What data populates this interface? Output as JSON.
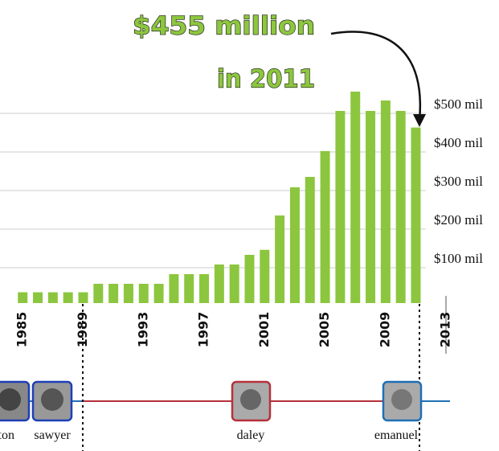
{
  "chart_data": {
    "type": "bar",
    "annotation": [
      "$455 million",
      "in 2011"
    ],
    "x": [
      1985,
      1986,
      1987,
      1988,
      1989,
      1990,
      1991,
      1992,
      1993,
      1994,
      1995,
      1996,
      1997,
      1998,
      1999,
      2000,
      2001,
      2002,
      2003,
      2004,
      2005,
      2006,
      2007,
      2008,
      2009,
      2010,
      2011
    ],
    "values": [
      28,
      28,
      28,
      28,
      28,
      50,
      50,
      50,
      50,
      50,
      75,
      75,
      75,
      100,
      100,
      125,
      138,
      227,
      300,
      327,
      394,
      498,
      548,
      498,
      525,
      498,
      455
    ],
    "color": "#8cc63f",
    "xlim": [
      1983.5,
      2016.5
    ],
    "xticks": [
      1985,
      1989,
      1993,
      1997,
      2001,
      2005,
      2009,
      2013
    ],
    "ylim": [
      0,
      785
    ],
    "yticks": [
      {
        "value": 100,
        "label": "$100 mil"
      },
      {
        "value": 200,
        "label": "$200 mil"
      },
      {
        "value": 300,
        "label": "$300 mil"
      },
      {
        "value": 400,
        "label": "$400 mil"
      },
      {
        "value": 500,
        "label": "$500 mil"
      }
    ],
    "grid": true,
    "mayors": [
      "washington",
      "sawyer",
      "daley",
      "emanuel"
    ]
  }
}
